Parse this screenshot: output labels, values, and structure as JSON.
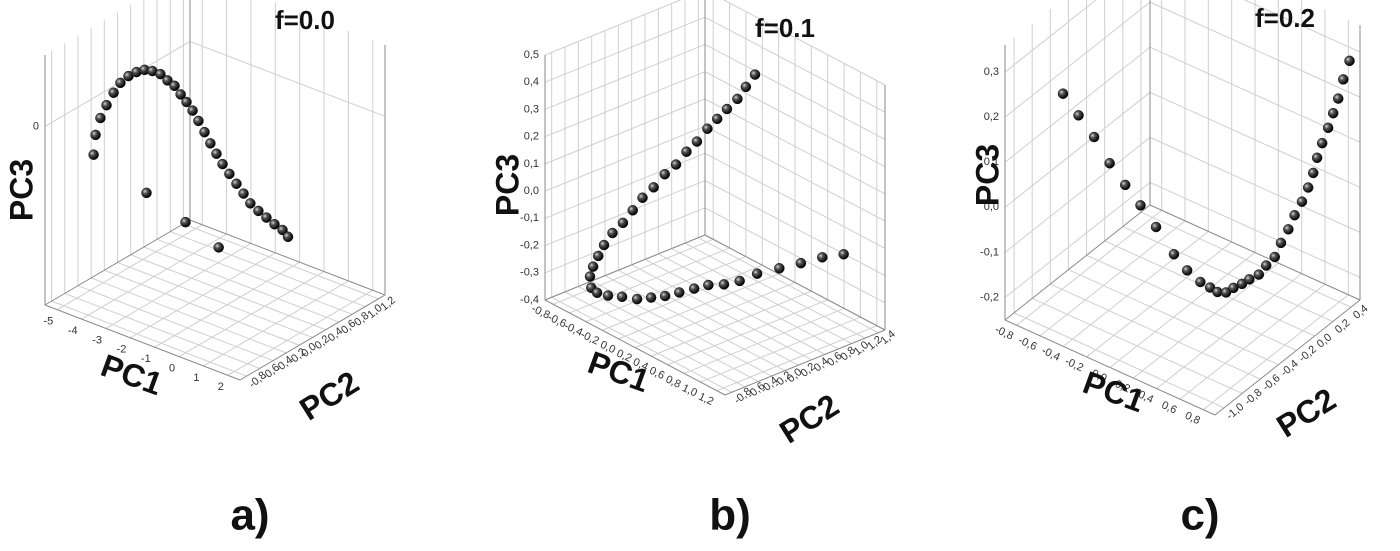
{
  "chart_data": [
    {
      "type": "scatter3d",
      "title": "f=0.0",
      "xlabel": "PC1",
      "ylabel": "PC2",
      "zlabel": "PC3",
      "panel_label": "a)",
      "grid": true,
      "color": "#111111",
      "xlim": [
        -5.5,
        2.5
      ],
      "ylim": [
        -0.9,
        1.3
      ],
      "zlim": [
        -2,
        0.8
      ],
      "xticks": [
        -5,
        -4,
        -3,
        -2,
        -1,
        0,
        1,
        2
      ],
      "yticks": [
        {
          "value": -0.8,
          "label": "-0,8"
        },
        {
          "value": -0.6,
          "label": "-0,6"
        },
        {
          "value": -0.4,
          "label": "-0,4"
        },
        {
          "value": -0.2,
          "label": "-0,2"
        },
        {
          "value": 0,
          "label": "0,0"
        },
        {
          "value": 0.2,
          "label": "0,2"
        },
        {
          "value": 0.4,
          "label": "0,4"
        },
        {
          "value": 0.6,
          "label": "0,6"
        },
        {
          "value": 0.8,
          "label": "0,8"
        },
        {
          "value": 1.0,
          "label": "1,0"
        },
        {
          "value": 1.2,
          "label": "1,2"
        }
      ],
      "zticks": [
        0
      ],
      "x": [
        -5.29,
        -5.21,
        -5.01,
        -4.76,
        -4.47,
        -4.19,
        -3.86,
        -3.53,
        -3.2,
        -2.88,
        -2.55,
        -2.26,
        -1.97,
        -1.72,
        -1.48,
        -1.23,
        -0.99,
        -0.74,
        -0.5,
        -0.25,
        0.0,
        0.28,
        0.57,
        0.86,
        1.14,
        1.47,
        1.8,
        2.13,
        2.46,
        2.09,
        -3.12,
        -1.52,
        -0.16
      ],
      "y": [
        -0.24,
        -0.24,
        -0.24,
        -0.24,
        -0.24,
        -0.24,
        -0.24,
        -0.24,
        -0.24,
        -0.24,
        -0.24,
        -0.24,
        -0.24,
        -0.24,
        -0.24,
        -0.24,
        -0.24,
        -0.24,
        -0.24,
        -0.24,
        -0.24,
        -0.24,
        -0.24,
        -0.24,
        -0.24,
        -0.24,
        -0.24,
        -0.24,
        -0.24,
        -0.02,
        -0.24,
        -0.24,
        -0.24
      ],
      "z": [
        -0.58,
        -0.35,
        -0.14,
        0.03,
        0.2,
        0.34,
        0.45,
        0.53,
        0.59,
        0.61,
        0.61,
        0.57,
        0.54,
        0.47,
        0.41,
        0.34,
        0.25,
        0.15,
        0.05,
        -0.04,
        -0.13,
        -0.21,
        -0.29,
        -0.37,
        -0.45,
        -0.5,
        -0.54,
        -0.58,
        -0.61,
        -0.82,
        -0.78,
        -0.94,
        -1.08
      ]
    },
    {
      "type": "scatter3d",
      "title": "f=0.1",
      "xlabel": "PC1",
      "ylabel": "PC2",
      "zlabel": "PC3",
      "panel_label": "b)",
      "grid": true,
      "color": "#111111",
      "xlim": [
        -0.9,
        1.3
      ],
      "ylim": [
        -0.9,
        1.5
      ],
      "zlim": [
        -0.4,
        0.5
      ],
      "xticks": [
        {
          "value": -0.8,
          "label": "-0,8"
        },
        {
          "value": -0.6,
          "label": "-0,6"
        },
        {
          "value": -0.4,
          "label": "-0,4"
        },
        {
          "value": -0.2,
          "label": "-0,2"
        },
        {
          "value": 0,
          "label": "0,0"
        },
        {
          "value": 0.2,
          "label": "0,2"
        },
        {
          "value": 0.4,
          "label": "0,4"
        },
        {
          "value": 0.6,
          "label": "0,6"
        },
        {
          "value": 0.8,
          "label": "0,8"
        },
        {
          "value": 1.0,
          "label": "1,0"
        },
        {
          "value": 1.2,
          "label": "1,2"
        }
      ],
      "yticks": [
        {
          "value": -0.8,
          "label": "-0,8"
        },
        {
          "value": -0.6,
          "label": "-0,6"
        },
        {
          "value": -0.4,
          "label": "-0,4"
        },
        {
          "value": -0.2,
          "label": "-0,2"
        },
        {
          "value": 0,
          "label": "0,0"
        },
        {
          "value": 0.2,
          "label": "0,2"
        },
        {
          "value": 0.4,
          "label": "0,4"
        },
        {
          "value": 0.6,
          "label": "0,6"
        },
        {
          "value": 0.8,
          "label": "0,8"
        },
        {
          "value": 1.0,
          "label": "1,0"
        },
        {
          "value": 1.2,
          "label": "1,2"
        },
        {
          "value": 1.4,
          "label": "1,4"
        }
      ],
      "zticks": [
        {
          "value": -0.4,
          "label": "-0,4"
        },
        {
          "value": -0.3,
          "label": "-0,3"
        },
        {
          "value": -0.2,
          "label": "-0,2"
        },
        {
          "value": -0.1,
          "label": "-0,1"
        },
        {
          "value": 0,
          "label": "0,0"
        },
        {
          "value": 0.1,
          "label": "0,1"
        },
        {
          "value": 0.2,
          "label": "0,2"
        },
        {
          "value": 0.3,
          "label": "0,3"
        },
        {
          "value": 0.4,
          "label": "0,4"
        },
        {
          "value": 0.5,
          "label": "0,5"
        }
      ],
      "x": [
        -0.24,
        -0.27,
        -0.3,
        -0.33,
        -0.36,
        -0.39,
        -0.42,
        -0.45,
        -0.48,
        -0.52,
        -0.55,
        -0.58,
        -0.61,
        -0.64,
        -0.67,
        -0.7,
        -0.73,
        -0.76,
        -0.79,
        -0.53,
        -0.54,
        -0.48,
        -0.39,
        -0.28,
        -0.19,
        -0.1,
        0.0,
        0.1,
        0.2,
        0.31,
        0.42,
        0.56,
        0.75,
        0.94,
        1.12,
        1.3
      ],
      "y": [
        1.44,
        1.34,
        1.25,
        1.13,
        1.02,
        0.91,
        0.79,
        0.67,
        0.55,
        0.43,
        0.3,
        0.17,
        0.06,
        -0.05,
        -0.17,
        -0.26,
        -0.31,
        -0.35,
        -0.36,
        -0.66,
        -0.56,
        -0.47,
        -0.37,
        -0.28,
        -0.18,
        -0.08,
        0.01,
        0.11,
        0.2,
        0.3,
        0.4,
        0.49,
        0.59,
        0.68,
        0.78,
        0.88
      ],
      "z": [
        0.3,
        0.26,
        0.22,
        0.19,
        0.16,
        0.13,
        0.09,
        0.06,
        0.02,
        -0.01,
        -0.05,
        -0.08,
        -0.12,
        -0.16,
        -0.19,
        -0.23,
        -0.27,
        -0.31,
        -0.35,
        -0.32,
        -0.35,
        -0.36,
        -0.36,
        -0.36,
        -0.35,
        -0.34,
        -0.32,
        -0.3,
        -0.28,
        -0.27,
        -0.25,
        -0.21,
        -0.17,
        -0.13,
        -0.09,
        -0.06
      ]
    },
    {
      "type": "scatter3d",
      "title": "f=0.2",
      "xlabel": "PC1",
      "ylabel": "PC2",
      "zlabel": "PC3",
      "panel_label": "c)",
      "grid": true,
      "color": "#111111",
      "xlim": [
        -0.9,
        0.9
      ],
      "ylim": [
        -1.1,
        0.5
      ],
      "zlim": [
        -0.25,
        0.36
      ],
      "xticks": [
        {
          "value": -0.8,
          "label": "-0,8"
        },
        {
          "value": -0.6,
          "label": "-0,6"
        },
        {
          "value": -0.4,
          "label": "-0,4"
        },
        {
          "value": -0.2,
          "label": "-0,2"
        },
        {
          "value": 0,
          "label": "0,0"
        },
        {
          "value": 0.2,
          "label": "0,2"
        },
        {
          "value": 0.4,
          "label": "0,4"
        },
        {
          "value": 0.6,
          "label": "0,6"
        },
        {
          "value": 0.8,
          "label": "0,8"
        }
      ],
      "yticks": [
        {
          "value": -1.0,
          "label": "-1,0"
        },
        {
          "value": -0.8,
          "label": "-0,8"
        },
        {
          "value": -0.6,
          "label": "-0,6"
        },
        {
          "value": -0.4,
          "label": "-0,4"
        },
        {
          "value": -0.2,
          "label": "-0,2"
        },
        {
          "value": 0,
          "label": "0,0"
        },
        {
          "value": 0.2,
          "label": "0,2"
        },
        {
          "value": 0.4,
          "label": "0,4"
        }
      ],
      "zticks": [
        {
          "value": -0.2,
          "label": "-0,2"
        },
        {
          "value": -0.1,
          "label": "-0,1"
        },
        {
          "value": 0,
          "label": "0,0"
        },
        {
          "value": 0.1,
          "label": "0,1"
        },
        {
          "value": 0.2,
          "label": "0,2"
        },
        {
          "value": 0.3,
          "label": "0,3"
        }
      ],
      "x": [
        -0.9,
        -0.79,
        -0.68,
        -0.57,
        -0.46,
        -0.36,
        -0.25,
        -0.12,
        -0.03,
        0.06,
        0.12,
        0.16,
        0.21,
        0.25,
        0.3,
        0.34,
        0.39,
        0.43,
        0.48,
        0.51,
        0.55,
        0.58,
        0.62,
        0.65,
        0.67,
        0.68,
        0.7,
        0.72,
        0.74,
        0.76,
        0.78,
        0.81
      ],
      "y": [
        -0.46,
        -0.43,
        -0.4,
        -0.37,
        -0.34,
        -0.3,
        -0.27,
        -0.24,
        -0.21,
        -0.18,
        -0.15,
        -0.12,
        -0.09,
        -0.06,
        -0.03,
        0.0,
        0.04,
        0.07,
        0.1,
        0.13,
        0.16,
        0.19,
        0.22,
        0.25,
        0.28,
        0.31,
        0.34,
        0.38,
        0.41,
        0.44,
        0.47,
        0.5
      ],
      "z": [
        0.15,
        0.11,
        0.07,
        0.02,
        -0.02,
        -0.06,
        -0.1,
        -0.15,
        -0.18,
        -0.2,
        -0.21,
        -0.22,
        -0.22,
        -0.21,
        -0.2,
        -0.19,
        -0.18,
        -0.16,
        -0.14,
        -0.11,
        -0.08,
        -0.05,
        -0.02,
        0.01,
        0.04,
        0.07,
        0.1,
        0.13,
        0.16,
        0.19,
        0.23,
        0.27
      ]
    }
  ]
}
